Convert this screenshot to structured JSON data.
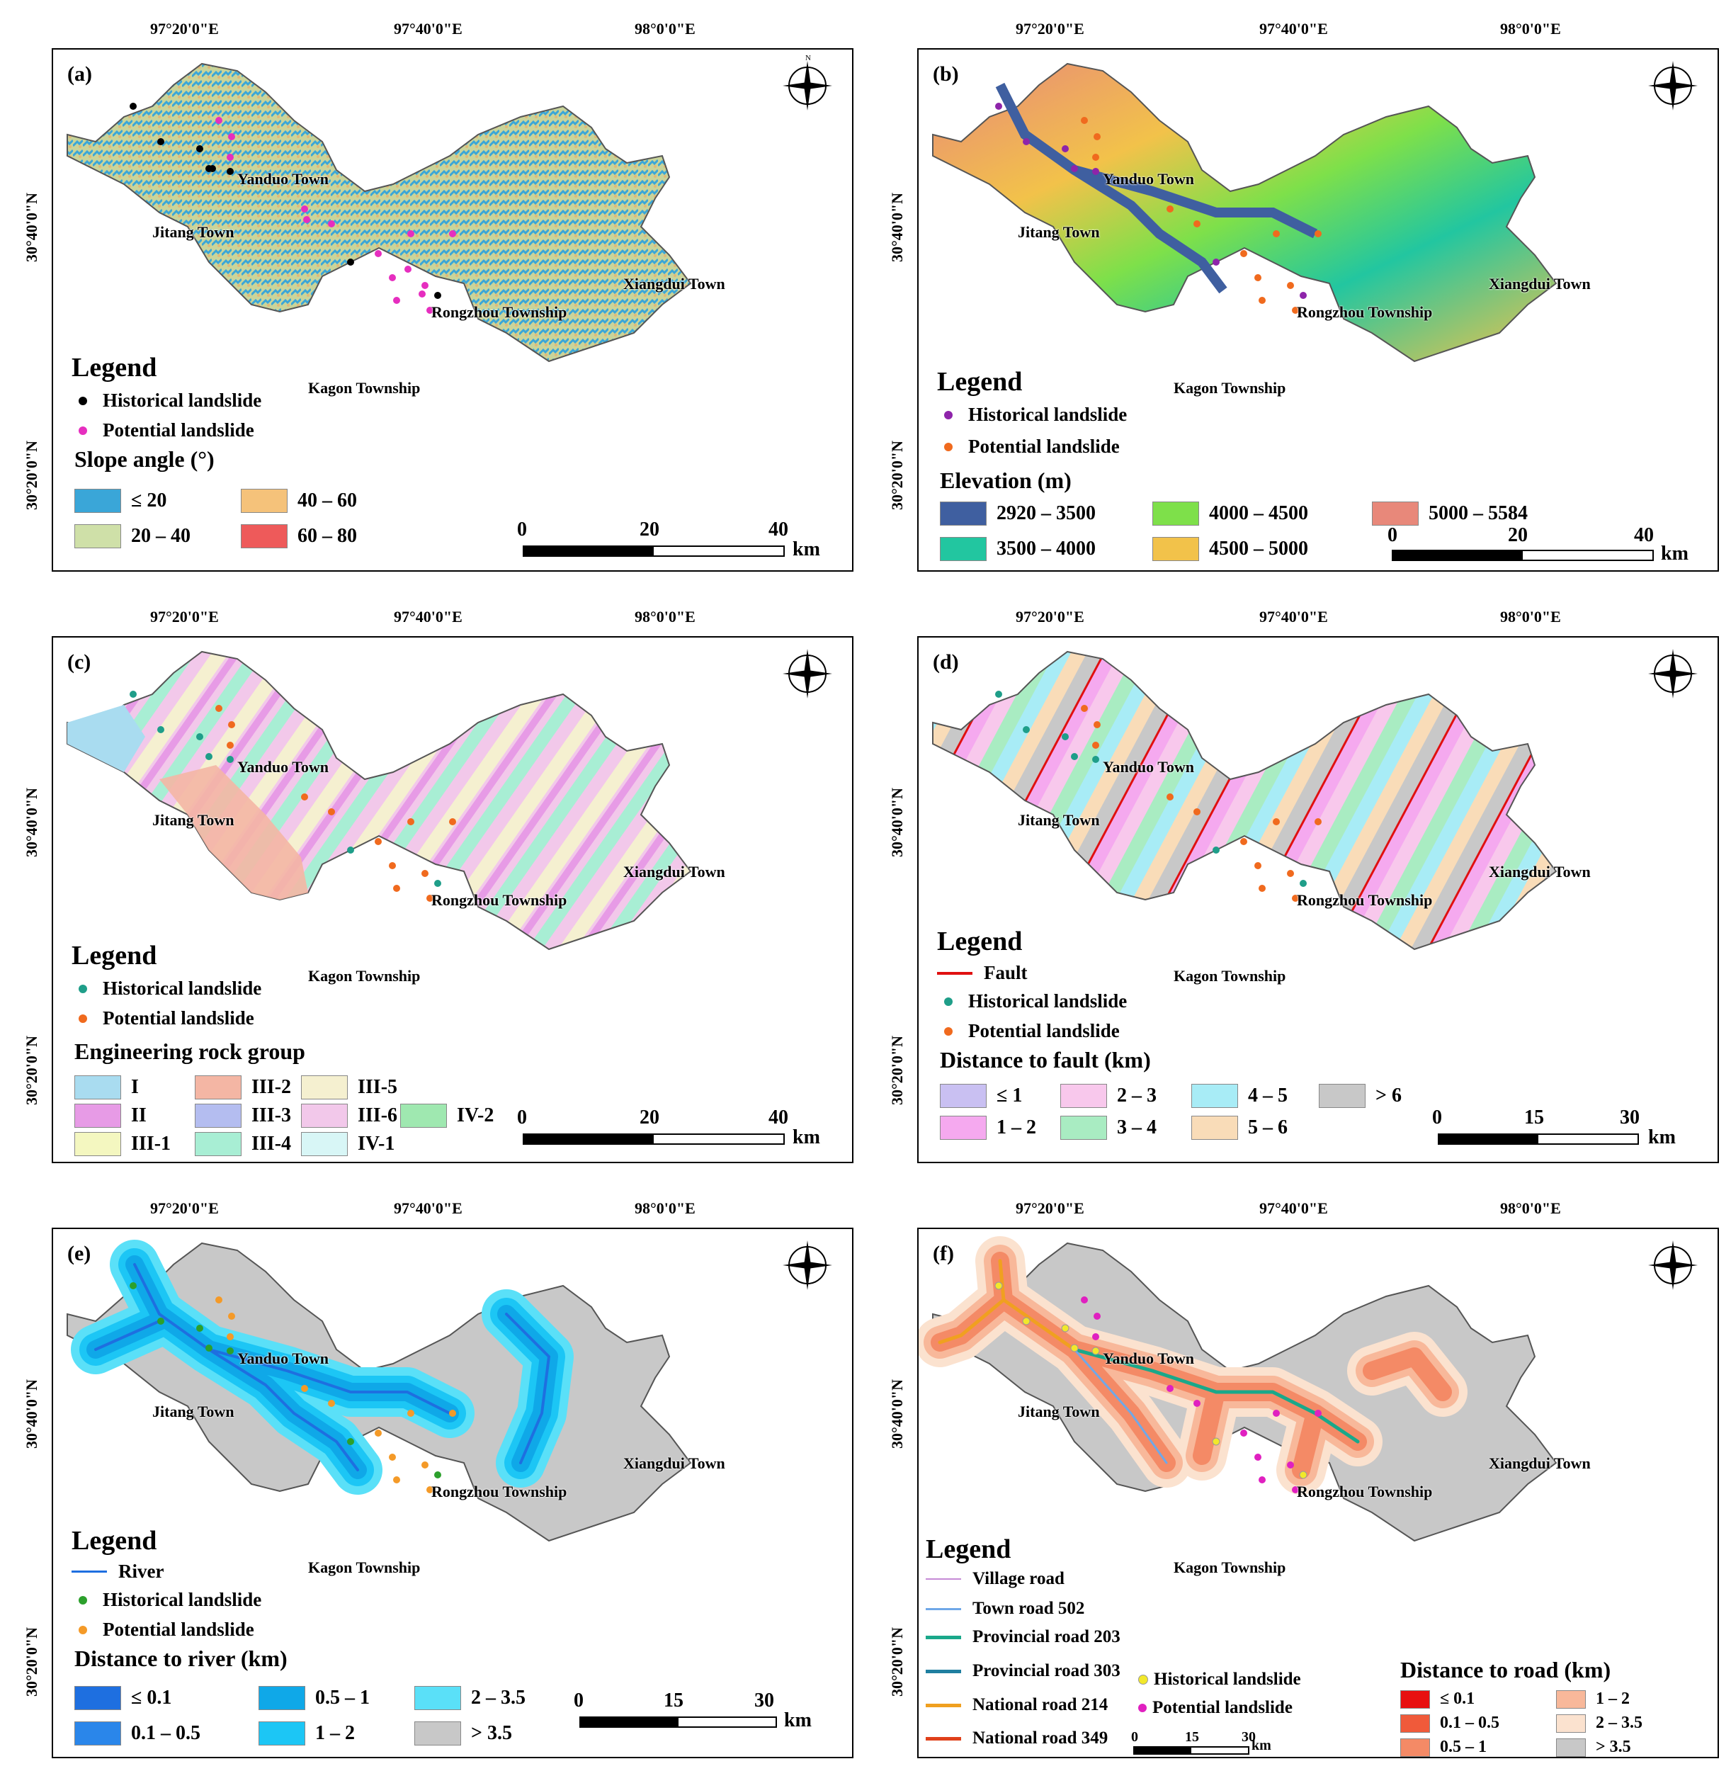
{
  "coords": {
    "top": [
      "97°20'0\"E",
      "97°40'0\"E",
      "98°0'0\"E"
    ],
    "left": [
      "30°40'0\"N",
      "30°20'0\"N"
    ]
  },
  "towns": [
    "Yanduo Town",
    "Jitang Town",
    "Rongzhou Township",
    "Xiangdui Town",
    "Kagon Township"
  ],
  "compass": {
    "n": "N",
    "s": "S",
    "e": "E",
    "w": "W"
  },
  "legend_title": "Legend",
  "historical": "Historical landslide",
  "potential": "Potential landslide",
  "km": "km",
  "panels": {
    "a": {
      "label": "(a)",
      "colors": {
        "hist": "#000000",
        "pot": "#e62ebf"
      },
      "class_title": "Slope angle (°)",
      "classes": [
        {
          "label": "≤ 20",
          "color": "#3aa6d8"
        },
        {
          "label": "40 – 60",
          "color": "#f5c27a"
        },
        {
          "label": "20 – 40",
          "color": "#cfe0a8"
        },
        {
          "label": "60 – 80",
          "color": "#ee5a5a"
        }
      ],
      "scale": [
        "0",
        "20",
        "40"
      ]
    },
    "b": {
      "label": "(b)",
      "colors": {
        "hist": "#8e24aa",
        "pot": "#f06a1e"
      },
      "class_title": "Elevation (m)",
      "classes": [
        {
          "label": "2920 – 3500",
          "color": "#3f5fa0"
        },
        {
          "label": "4000 – 4500",
          "color": "#7ee04a"
        },
        {
          "label": "5000 – 5584",
          "color": "#e8887a"
        },
        {
          "label": "3500 – 4000",
          "color": "#22c6a0"
        },
        {
          "label": "4500 – 5000",
          "color": "#f2c24a"
        }
      ],
      "scale": [
        "0",
        "20",
        "40"
      ]
    },
    "c": {
      "label": "(c)",
      "colors": {
        "hist": "#1f9e89",
        "pot": "#f06a1e"
      },
      "class_title": "Engineering rock group",
      "classes": [
        {
          "label": "I",
          "color": "#a9dcf0"
        },
        {
          "label": "III-2",
          "color": "#f4b6a4"
        },
        {
          "label": "III-5",
          "color": "#f5f0d0"
        },
        {
          "label": "II",
          "color": "#e79be6"
        },
        {
          "label": "III-3",
          "color": "#b4bdf0"
        },
        {
          "label": "III-6",
          "color": "#f2c8ea"
        },
        {
          "label": "IV-2",
          "color": "#9fe8b0"
        },
        {
          "label": "III-1",
          "color": "#f4f7c0"
        },
        {
          "label": "III-4",
          "color": "#a8eed4"
        },
        {
          "label": "IV-1",
          "color": "#d8f6f6"
        }
      ],
      "scale": [
        "0",
        "20",
        "40"
      ]
    },
    "d": {
      "label": "(d)",
      "colors": {
        "hist": "#1f9e89",
        "pot": "#f06a1e"
      },
      "fault_label": "Fault",
      "class_title": "Distance to fault (km)",
      "classes": [
        {
          "label": "≤ 1",
          "color": "#c9c0f2"
        },
        {
          "label": "2 – 3",
          "color": "#f8c8ec"
        },
        {
          "label": "4 – 5",
          "color": "#a8ecf6"
        },
        {
          "label": "> 6",
          "color": "#c8c8c8"
        },
        {
          "label": "1 – 2",
          "color": "#f5a9ef"
        },
        {
          "label": "3 – 4",
          "color": "#a9ecc2"
        },
        {
          "label": "5 – 6",
          "color": "#f9dcb8"
        }
      ],
      "scale": [
        "0",
        "15",
        "30"
      ]
    },
    "e": {
      "label": "(e)",
      "colors": {
        "hist": "#2ca02c",
        "pot": "#f49a28"
      },
      "river_label": "River",
      "class_title": "Distance to river (km)",
      "classes": [
        {
          "label": "≤ 0.1",
          "color": "#1e6fe0"
        },
        {
          "label": "0.5 – 1",
          "color": "#0fa8e8"
        },
        {
          "label": "2 – 3.5",
          "color": "#5ae0f8"
        },
        {
          "label": "0.1 – 0.5",
          "color": "#2a86ea"
        },
        {
          "label": "1 – 2",
          "color": "#1cc6f5"
        },
        {
          "label": "> 3.5",
          "color": "#c8c8c8"
        }
      ],
      "scale": [
        "0",
        "15",
        "30"
      ]
    },
    "f": {
      "label": "(f)",
      "colors": {
        "hist": "#f2e82a",
        "pot": "#e020c0"
      },
      "roads": [
        {
          "label": "Village road",
          "color": "#c58ad6"
        },
        {
          "label": "Town road 502",
          "color": "#6fa8e8"
        },
        {
          "label": "Provincial road 203",
          "color": "#1aa88a"
        },
        {
          "label": "Provincial road 303",
          "color": "#1f7fa0"
        },
        {
          "label": "National road 214",
          "color": "#f0a020"
        },
        {
          "label": "National road 349",
          "color": "#e0401a"
        }
      ],
      "class_title": "Distance to road (km)",
      "classes": [
        {
          "label": "≤ 0.1",
          "color": "#e81010"
        },
        {
          "label": "1 – 2",
          "color": "#f8b89a"
        },
        {
          "label": "0.1 – 0.5",
          "color": "#f05a3a"
        },
        {
          "label": "2 – 3.5",
          "color": "#fbe2cf"
        },
        {
          "label": "0.5 – 1",
          "color": "#f48a66"
        },
        {
          "label": "> 3.5",
          "color": "#c8c8c8"
        }
      ],
      "scale": [
        "0",
        "15",
        "30"
      ]
    }
  }
}
